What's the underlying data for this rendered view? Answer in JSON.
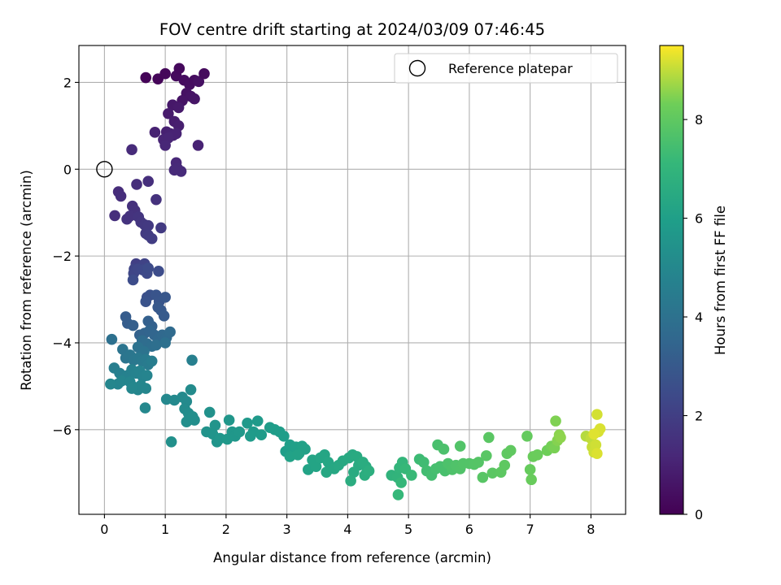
{
  "chart_data": {
    "type": "scatter",
    "title": "FOV centre drift starting at 2024/03/09 07:46:45",
    "xlabel": "Angular distance from reference (arcmin)",
    "ylabel": "Rotation from reference (arcmin)",
    "xlim": [
      -0.42,
      8.57
    ],
    "ylim": [
      -7.95,
      2.85
    ],
    "xticks": [
      0,
      1,
      2,
      3,
      4,
      5,
      6,
      7,
      8
    ],
    "yticks": [
      -6,
      -4,
      -2,
      0,
      2
    ],
    "xtick_labels": [
      "0",
      "1",
      "2",
      "3",
      "4",
      "5",
      "6",
      "7",
      "8"
    ],
    "ytick_labels": [
      "−6",
      "−4",
      "−2",
      "0",
      "2"
    ],
    "grid": true,
    "colormap": "viridis",
    "colorbar": {
      "label": "Hours from first FF file",
      "range": [
        0,
        9.5
      ],
      "ticks": [
        0,
        2,
        4,
        6,
        8
      ],
      "tick_labels": [
        "0",
        "2",
        "4",
        "6",
        "8"
      ]
    },
    "legend": {
      "placement": "upper right",
      "entries": [
        {
          "label": "Reference platepar",
          "marker": "open-circle",
          "x": 0,
          "y": 0
        }
      ]
    },
    "points": [
      [
        0.68,
        2.11,
        0.1
      ],
      [
        0.88,
        2.08,
        0.15
      ],
      [
        1.0,
        2.2,
        0.2
      ],
      [
        1.18,
        2.15,
        0.3
      ],
      [
        1.23,
        2.32,
        0.25
      ],
      [
        1.31,
        2.05,
        0.35
      ],
      [
        1.4,
        1.95,
        0.4
      ],
      [
        1.48,
        2.05,
        0.35
      ],
      [
        1.55,
        2.02,
        0.45
      ],
      [
        1.64,
        2.2,
        0.3
      ],
      [
        1.35,
        1.75,
        0.5
      ],
      [
        1.42,
        1.68,
        0.55
      ],
      [
        1.48,
        1.62,
        0.6
      ],
      [
        1.28,
        1.58,
        0.55
      ],
      [
        1.12,
        1.48,
        0.7
      ],
      [
        1.22,
        1.42,
        0.75
      ],
      [
        1.05,
        1.28,
        0.8
      ],
      [
        1.15,
        1.1,
        0.85
      ],
      [
        1.22,
        1.0,
        0.9
      ],
      [
        1.02,
        0.86,
        0.95
      ],
      [
        1.08,
        0.82,
        1.0
      ],
      [
        0.83,
        0.85,
        1.0
      ],
      [
        1.13,
        0.78,
        1.05
      ],
      [
        1.18,
        0.82,
        1.05
      ],
      [
        0.97,
        0.68,
        1.1
      ],
      [
        1.05,
        0.72,
        1.1
      ],
      [
        1.0,
        0.55,
        1.15
      ],
      [
        1.54,
        0.55,
        1.05
      ],
      [
        1.18,
        0.15,
        1.2
      ],
      [
        1.2,
        0.02,
        1.25
      ],
      [
        1.26,
        -0.05,
        1.3
      ],
      [
        1.15,
        -0.02,
        1.25
      ],
      [
        0.45,
        0.45,
        1.3
      ],
      [
        0.23,
        -0.52,
        1.35
      ],
      [
        0.27,
        -0.62,
        1.4
      ],
      [
        0.17,
        -1.07,
        1.45
      ],
      [
        0.53,
        -0.35,
        1.4
      ],
      [
        0.72,
        -0.28,
        1.45
      ],
      [
        0.46,
        -0.85,
        1.5
      ],
      [
        0.5,
        -0.95,
        1.55
      ],
      [
        0.37,
        -1.15,
        1.6
      ],
      [
        0.42,
        -1.08,
        1.6
      ],
      [
        0.56,
        -1.1,
        1.65
      ],
      [
        0.6,
        -1.22,
        1.7
      ],
      [
        0.85,
        -0.7,
        1.55
      ],
      [
        0.66,
        -1.28,
        1.75
      ],
      [
        0.72,
        -1.3,
        1.8
      ],
      [
        0.68,
        -1.48,
        1.85
      ],
      [
        0.72,
        -1.52,
        1.9
      ],
      [
        0.78,
        -1.6,
        1.95
      ],
      [
        0.93,
        -1.35,
        1.85
      ],
      [
        0.52,
        -2.18,
        2.0
      ],
      [
        0.6,
        -2.25,
        2.1
      ],
      [
        0.66,
        -2.18,
        2.15
      ],
      [
        0.49,
        -2.3,
        2.2
      ],
      [
        0.48,
        -2.4,
        2.25
      ],
      [
        0.55,
        -2.3,
        2.3
      ],
      [
        0.63,
        -2.32,
        2.35
      ],
      [
        0.7,
        -2.4,
        2.4
      ],
      [
        0.72,
        -2.28,
        2.45
      ],
      [
        0.47,
        -2.55,
        2.5
      ],
      [
        0.89,
        -2.35,
        2.5
      ],
      [
        0.7,
        -2.95,
        2.6
      ],
      [
        0.75,
        -2.9,
        2.7
      ],
      [
        0.68,
        -3.05,
        2.75
      ],
      [
        0.85,
        -2.9,
        2.8
      ],
      [
        0.9,
        -3.05,
        2.85
      ],
      [
        1.0,
        -2.95,
        2.9
      ],
      [
        0.88,
        -3.18,
        2.95
      ],
      [
        0.93,
        -3.25,
        3.0
      ],
      [
        0.98,
        -3.38,
        3.05
      ],
      [
        0.35,
        -3.4,
        3.1
      ],
      [
        0.38,
        -3.55,
        3.15
      ],
      [
        0.47,
        -3.6,
        3.2
      ],
      [
        0.72,
        -3.5,
        3.25
      ],
      [
        0.78,
        -3.62,
        3.3
      ],
      [
        0.58,
        -3.82,
        3.35
      ],
      [
        0.66,
        -3.78,
        3.4
      ],
      [
        0.74,
        -3.72,
        3.45
      ],
      [
        0.82,
        -3.82,
        3.5
      ],
      [
        0.88,
        -3.92,
        3.55
      ],
      [
        0.95,
        -3.82,
        3.6
      ],
      [
        1.02,
        -3.88,
        3.65
      ],
      [
        1.08,
        -3.75,
        3.7
      ],
      [
        0.62,
        -3.95,
        3.75
      ],
      [
        0.7,
        -4.02,
        3.8
      ],
      [
        0.78,
        -4.08,
        3.85
      ],
      [
        0.85,
        -4.05,
        3.9
      ],
      [
        1.0,
        -4.0,
        3.95
      ],
      [
        0.55,
        -4.1,
        4.0
      ],
      [
        0.65,
        -4.2,
        4.05
      ],
      [
        0.12,
        -3.92,
        3.95
      ],
      [
        0.3,
        -4.15,
        4.1
      ],
      [
        0.35,
        -4.35,
        4.15
      ],
      [
        0.42,
        -4.28,
        4.2
      ],
      [
        0.48,
        -4.4,
        4.25
      ],
      [
        0.55,
        -4.35,
        4.3
      ],
      [
        0.62,
        -4.42,
        4.35
      ],
      [
        0.68,
        -4.38,
        4.4
      ],
      [
        0.72,
        -4.5,
        4.45
      ],
      [
        0.78,
        -4.42,
        4.5
      ],
      [
        0.16,
        -4.58,
        4.55
      ],
      [
        0.25,
        -4.7,
        4.6
      ],
      [
        0.32,
        -4.82,
        4.65
      ],
      [
        0.38,
        -4.75,
        4.7
      ],
      [
        0.45,
        -4.62,
        4.72
      ],
      [
        0.52,
        -4.7,
        4.75
      ],
      [
        0.58,
        -4.65,
        4.78
      ],
      [
        0.63,
        -4.78,
        4.8
      ],
      [
        0.7,
        -4.75,
        4.82
      ],
      [
        0.22,
        -4.95,
        4.85
      ],
      [
        0.28,
        -4.88,
        4.87
      ],
      [
        0.42,
        -4.9,
        4.88
      ],
      [
        0.48,
        -5.02,
        4.9
      ],
      [
        0.55,
        -5.08,
        4.92
      ],
      [
        0.6,
        -4.98,
        4.93
      ],
      [
        0.68,
        -5.05,
        4.94
      ],
      [
        0.1,
        -4.95,
        4.9
      ],
      [
        0.45,
        -5.05,
        4.95
      ],
      [
        0.67,
        -5.5,
        5.0
      ],
      [
        1.44,
        -4.4,
        4.6
      ],
      [
        1.02,
        -5.3,
        5.0
      ],
      [
        1.15,
        -5.32,
        5.05
      ],
      [
        1.28,
        -5.25,
        5.1
      ],
      [
        1.35,
        -5.35,
        5.1
      ],
      [
        1.42,
        -5.08,
        5.15
      ],
      [
        1.32,
        -5.52,
        5.15
      ],
      [
        1.38,
        -5.62,
        5.2
      ],
      [
        1.4,
        -5.72,
        5.25
      ],
      [
        1.48,
        -5.78,
        5.28
      ],
      [
        1.35,
        -5.82,
        5.3
      ],
      [
        1.45,
        -5.7,
        5.32
      ],
      [
        1.1,
        -6.28,
        5.35
      ],
      [
        1.73,
        -5.6,
        5.4
      ],
      [
        1.68,
        -6.05,
        5.45
      ],
      [
        1.82,
        -5.9,
        5.5
      ],
      [
        1.78,
        -6.1,
        5.52
      ],
      [
        1.85,
        -6.28,
        5.55
      ],
      [
        1.9,
        -6.2,
        5.58
      ],
      [
        2.05,
        -5.78,
        5.6
      ],
      [
        2.1,
        -6.05,
        5.62
      ],
      [
        2.15,
        -6.15,
        5.65
      ],
      [
        2.22,
        -6.05,
        5.68
      ],
      [
        2.02,
        -6.22,
        5.7
      ],
      [
        2.35,
        -5.85,
        5.72
      ],
      [
        2.45,
        -6.05,
        5.75
      ],
      [
        2.52,
        -5.8,
        5.78
      ],
      [
        2.4,
        -6.15,
        5.8
      ],
      [
        2.58,
        -6.12,
        5.82
      ],
      [
        2.72,
        -5.95,
        5.85
      ],
      [
        2.8,
        -6.0,
        5.88
      ],
      [
        2.88,
        -6.05,
        5.9
      ],
      [
        2.95,
        -6.15,
        5.92
      ],
      [
        2.98,
        -6.5,
        5.95
      ],
      [
        3.05,
        -6.35,
        5.97
      ],
      [
        3.1,
        -6.5,
        6.0
      ],
      [
        3.15,
        -6.4,
        6.02
      ],
      [
        3.2,
        -6.55,
        6.05
      ],
      [
        3.25,
        -6.38,
        6.07
      ],
      [
        3.3,
        -6.45,
        6.1
      ],
      [
        3.05,
        -6.62,
        6.12
      ],
      [
        3.18,
        -6.58,
        6.15
      ],
      [
        3.35,
        -6.92,
        6.18
      ],
      [
        3.42,
        -6.7,
        6.2
      ],
      [
        3.48,
        -6.85,
        6.22
      ],
      [
        3.55,
        -6.65,
        6.25
      ],
      [
        3.62,
        -6.58,
        6.28
      ],
      [
        3.68,
        -6.75,
        6.3
      ],
      [
        3.72,
        -6.85,
        6.32
      ],
      [
        3.65,
        -6.98,
        6.35
      ],
      [
        3.78,
        -6.9,
        6.38
      ],
      [
        3.85,
        -6.82,
        6.4
      ],
      [
        3.92,
        -6.72,
        6.42
      ],
      [
        4.02,
        -6.65,
        6.45
      ],
      [
        4.08,
        -6.58,
        6.48
      ],
      [
        4.15,
        -6.62,
        6.5
      ],
      [
        4.18,
        -6.82,
        6.52
      ],
      [
        4.1,
        -6.98,
        6.55
      ],
      [
        4.25,
        -6.75,
        6.58
      ],
      [
        4.3,
        -6.85,
        6.6
      ],
      [
        4.05,
        -7.18,
        6.62
      ],
      [
        4.28,
        -7.05,
        6.65
      ],
      [
        4.35,
        -6.95,
        6.68
      ],
      [
        4.72,
        -7.05,
        6.9
      ],
      [
        4.82,
        -7.1,
        6.95
      ],
      [
        4.85,
        -6.88,
        7.0
      ],
      [
        4.9,
        -6.75,
        7.05
      ],
      [
        4.88,
        -7.22,
        7.1
      ],
      [
        4.83,
        -7.5,
        7.12
      ],
      [
        4.95,
        -6.9,
        7.15
      ],
      [
        5.05,
        -7.05,
        7.2
      ],
      [
        5.18,
        -6.68,
        7.3
      ],
      [
        5.25,
        -6.75,
        7.35
      ],
      [
        5.3,
        -6.95,
        7.4
      ],
      [
        5.38,
        -7.05,
        7.45
      ],
      [
        5.45,
        -6.9,
        7.5
      ],
      [
        5.52,
        -6.85,
        7.52
      ],
      [
        5.6,
        -6.95,
        7.55
      ],
      [
        5.48,
        -6.35,
        7.55
      ],
      [
        5.58,
        -6.45,
        7.6
      ],
      [
        5.65,
        -6.78,
        7.62
      ],
      [
        5.72,
        -6.92,
        7.65
      ],
      [
        5.78,
        -6.82,
        7.68
      ],
      [
        5.85,
        -6.9,
        7.7
      ],
      [
        5.9,
        -6.78,
        7.72
      ],
      [
        5.85,
        -6.38,
        7.72
      ],
      [
        6.0,
        -6.78,
        7.75
      ],
      [
        6.08,
        -6.8,
        7.78
      ],
      [
        6.15,
        -6.75,
        7.8
      ],
      [
        6.22,
        -7.1,
        7.85
      ],
      [
        6.28,
        -6.6,
        7.88
      ],
      [
        6.32,
        -6.18,
        7.9
      ],
      [
        6.38,
        -7.0,
        7.92
      ],
      [
        6.52,
        -6.98,
        7.95
      ],
      [
        6.58,
        -6.82,
        7.98
      ],
      [
        6.62,
        -6.55,
        8.0
      ],
      [
        6.68,
        -6.48,
        8.02
      ],
      [
        6.95,
        -6.15,
        8.1
      ],
      [
        7.0,
        -6.92,
        8.15
      ],
      [
        7.02,
        -7.15,
        8.18
      ],
      [
        7.05,
        -6.62,
        8.2
      ],
      [
        7.12,
        -6.58,
        8.22
      ],
      [
        7.28,
        -6.48,
        8.3
      ],
      [
        7.35,
        -6.38,
        8.35
      ],
      [
        7.4,
        -6.42,
        8.4
      ],
      [
        7.42,
        -5.8,
        8.45
      ],
      [
        7.45,
        -6.25,
        8.5
      ],
      [
        7.48,
        -6.12,
        8.55
      ],
      [
        7.5,
        -6.18,
        8.58
      ],
      [
        7.92,
        -6.15,
        8.9
      ],
      [
        8.0,
        -6.2,
        9.0
      ],
      [
        8.02,
        -6.4,
        9.05
      ],
      [
        8.05,
        -6.52,
        9.1
      ],
      [
        8.08,
        -6.35,
        9.12
      ],
      [
        8.1,
        -5.65,
        9.15
      ],
      [
        8.12,
        -6.05,
        9.18
      ],
      [
        8.15,
        -5.98,
        9.2
      ],
      [
        8.1,
        -6.55,
        9.22
      ],
      [
        8.05,
        -6.1,
        9.25
      ]
    ]
  }
}
